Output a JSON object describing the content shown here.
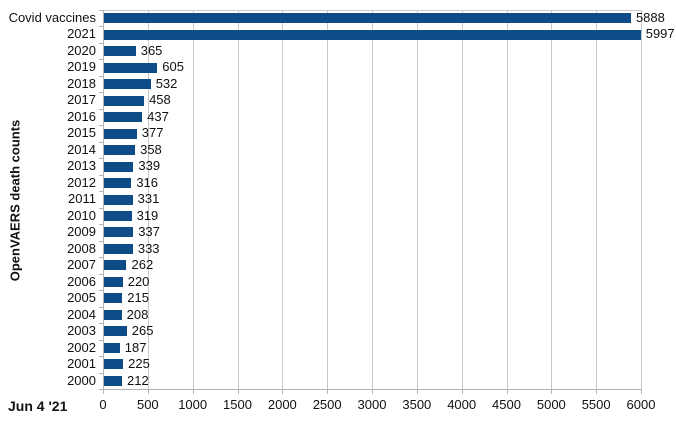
{
  "chart_data": {
    "type": "bar",
    "orientation": "horizontal",
    "categories": [
      "Covid vaccines",
      "2021",
      "2020",
      "2019",
      "2018",
      "2017",
      "2016",
      "2015",
      "2014",
      "2013",
      "2012",
      "2011",
      "2010",
      "2009",
      "2008",
      "2007",
      "2006",
      "2005",
      "2004",
      "2003",
      "2002",
      "2001",
      "2000"
    ],
    "values": [
      5888,
      5997,
      365,
      605,
      532,
      458,
      437,
      377,
      358,
      339,
      316,
      331,
      319,
      337,
      333,
      262,
      220,
      215,
      208,
      265,
      187,
      225,
      212
    ],
    "value_labels": [
      "5888",
      "5997",
      "365",
      "605",
      "532",
      "458",
      "437",
      "377",
      "358",
      "339",
      "316",
      "331",
      "319",
      "337",
      "333",
      "262",
      "220",
      "215",
      "208",
      "265",
      "187",
      "225",
      "212"
    ],
    "title": "",
    "xlabel": "",
    "ylabel": "OpenVAERS death counts",
    "xlim": [
      0,
      6000
    ],
    "xticks": [
      0,
      500,
      1000,
      1500,
      2000,
      2500,
      3000,
      3500,
      4000,
      4500,
      5000,
      5500,
      6000
    ],
    "xtick_labels": [
      "0",
      "500",
      "1000",
      "1500",
      "2000",
      "2500",
      "3000",
      "3500",
      "4000",
      "4500",
      "5000",
      "5500",
      "6000"
    ],
    "grid": "vertical",
    "legend": "none",
    "annotation": "Jun 4 '21",
    "colors": {
      "bar": "#0e4c87",
      "gridline": "#c9c9c9",
      "axis": "#b3b3b3",
      "text": "#111111"
    }
  }
}
